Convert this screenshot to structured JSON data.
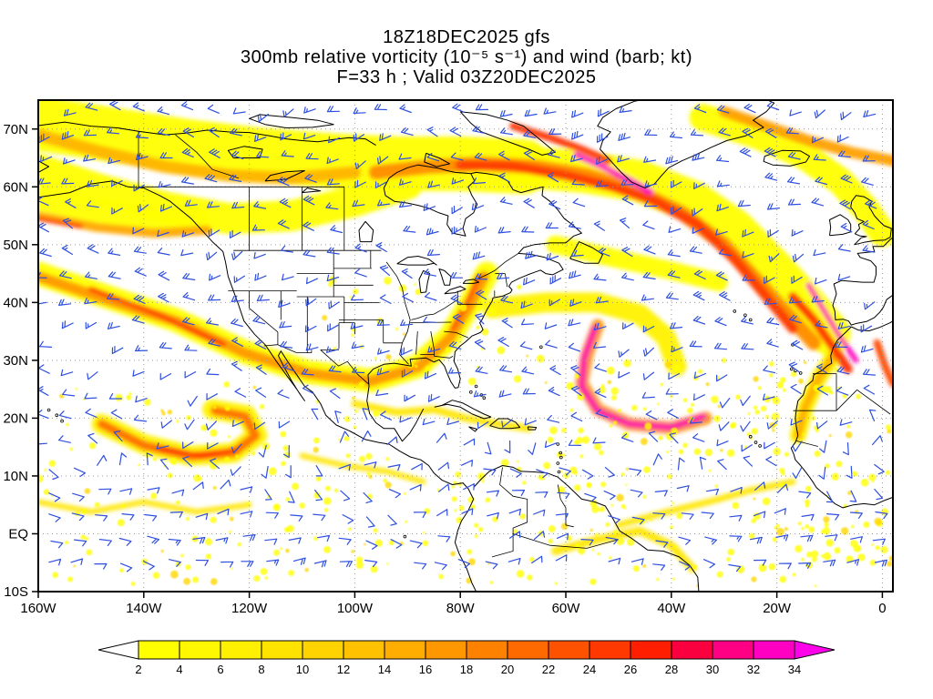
{
  "title": {
    "line1": "18Z18DEC2025 gfs",
    "line2": "300mb relative vorticity (10⁻⁵ s⁻¹) and wind (barb; kt)",
    "line3": "F=33 h ; Valid 03Z20DEC2025"
  },
  "axes": {
    "lat_ticks": [
      {
        "label": "70N",
        "value": 70
      },
      {
        "label": "60N",
        "value": 60
      },
      {
        "label": "50N",
        "value": 50
      },
      {
        "label": "40N",
        "value": 40
      },
      {
        "label": "30N",
        "value": 30
      },
      {
        "label": "20N",
        "value": 20
      },
      {
        "label": "10N",
        "value": 10
      },
      {
        "label": "EQ",
        "value": 0
      },
      {
        "label": "10S",
        "value": -10
      }
    ],
    "lon_ticks": [
      {
        "label": "160W",
        "value": -160
      },
      {
        "label": "140W",
        "value": -140
      },
      {
        "label": "120W",
        "value": -120
      },
      {
        "label": "100W",
        "value": -100
      },
      {
        "label": "80W",
        "value": -80
      },
      {
        "label": "60W",
        "value": -60
      },
      {
        "label": "40W",
        "value": -40
      },
      {
        "label": "20W",
        "value": -20
      },
      {
        "label": "0",
        "value": 0
      }
    ]
  },
  "colorbar": {
    "labels": [
      "2",
      "4",
      "6",
      "8",
      "10",
      "12",
      "14",
      "16",
      "18",
      "20",
      "22",
      "24",
      "26",
      "28",
      "30",
      "32",
      "34"
    ],
    "segment_colors": [
      "#ffff00",
      "#fff800",
      "#ffef00",
      "#ffe300",
      "#ffd300",
      "#ffc100",
      "#ffad00",
      "#ff9700",
      "#ff8100",
      "#ff6a00",
      "#ff5200",
      "#ff3900",
      "#ff1f00",
      "#fb003f",
      "#ff0084",
      "#ff00c2"
    ],
    "arrow_left_color": "#ffffff",
    "arrow_right_color": "#ff00ea",
    "outline_color": "#000000"
  },
  "chart_data": {
    "type": "heatmap",
    "title": "300mb relative vorticity (10⁻⁵ s⁻¹) and wind (barb; kt)",
    "model": "gfs",
    "init_time": "18Z18DEC2025",
    "forecast": "F=33 h",
    "valid_time": "03Z20DEC2025",
    "lon_range": [
      -160,
      2
    ],
    "lat_range": [
      -10,
      75
    ],
    "colorbar_levels": [
      2,
      4,
      6,
      8,
      10,
      12,
      14,
      16,
      18,
      20,
      22,
      24,
      26,
      28,
      30,
      32,
      34
    ],
    "units": "10⁻⁵ s⁻¹",
    "wind_barbs": {
      "color": "#2e4fe0",
      "units": "kt",
      "lon_step": 4.6,
      "lat_step": 4.1
    },
    "vorticity_bands": [
      {
        "name": "arctic-yellow-west",
        "color": "#ffff00",
        "width": 60,
        "points": [
          [
            -160,
            71
          ],
          [
            -146,
            69
          ],
          [
            -132,
            67
          ],
          [
            -118,
            65.5
          ],
          [
            -104,
            64.5
          ],
          [
            -92,
            64
          ],
          [
            -80,
            64
          ],
          [
            -68,
            63.5
          ]
        ]
      },
      {
        "name": "arctic-yellow-east",
        "color": "#ffff00",
        "width": 46,
        "points": [
          [
            -68,
            63.5
          ],
          [
            -56,
            62.5
          ],
          [
            -46,
            61
          ],
          [
            -36,
            57.5
          ],
          [
            -28,
            52.5
          ],
          [
            -21,
            46
          ],
          [
            -15,
            40
          ],
          [
            -10,
            34.5
          ]
        ]
      },
      {
        "name": "canada-yellow",
        "color": "#ffff00",
        "width": 34,
        "points": [
          [
            -160,
            63
          ],
          [
            -148,
            59.5
          ],
          [
            -136,
            56.5
          ],
          [
            -124,
            54.5
          ],
          [
            -112,
            55
          ],
          [
            -100,
            57.5
          ],
          [
            -90,
            60.5
          ]
        ]
      },
      {
        "name": "gulf-alaska-yellow",
        "color": "#ffff00",
        "width": 26,
        "points": [
          [
            -160,
            58
          ],
          [
            -150,
            56
          ],
          [
            -140,
            54.8
          ],
          [
            -130,
            54.5
          ]
        ]
      },
      {
        "name": "natl-yellow-south",
        "color": "#ffff00",
        "width": 20,
        "points": [
          [
            -62,
            50
          ],
          [
            -50,
            47.5
          ],
          [
            -40,
            45.5
          ],
          [
            -31,
            43.5
          ]
        ]
      },
      {
        "name": "nw-europe-yellow",
        "color": "#ffff00",
        "width": 30,
        "points": [
          [
            -34,
            72
          ],
          [
            -24,
            69
          ],
          [
            -15,
            65.5
          ],
          [
            -8,
            61
          ],
          [
            -3,
            56
          ],
          [
            0,
            52
          ]
        ]
      },
      {
        "name": "swus-yellow-halo",
        "color": "#ffff00",
        "width": 26,
        "points": [
          [
            -160,
            45
          ],
          [
            -147,
            41
          ],
          [
            -134,
            37
          ],
          [
            -121,
            31.5
          ],
          [
            -109,
            28
          ],
          [
            -97,
            26.5
          ],
          [
            -88,
            29
          ],
          [
            -82,
            34
          ],
          [
            -78,
            40
          ],
          [
            -75,
            45
          ]
        ]
      },
      {
        "name": "epac-hook-yellow",
        "color": "#fff200",
        "width": 22,
        "points": [
          [
            -148,
            19
          ],
          [
            -140,
            15.5
          ],
          [
            -131,
            13.5
          ],
          [
            -123,
            14
          ],
          [
            -118.5,
            17
          ],
          [
            -120.5,
            20.5
          ],
          [
            -127,
            21.5
          ]
        ]
      },
      {
        "name": "atl-arc-yellow",
        "color": "#fff200",
        "width": 22,
        "points": [
          [
            -74,
            39
          ],
          [
            -64,
            40
          ],
          [
            -54,
            40
          ],
          [
            -46,
            38
          ],
          [
            -41,
            34
          ],
          [
            -39,
            29
          ]
        ]
      },
      {
        "name": "nwafrica-yellow",
        "color": "#fff200",
        "width": 18,
        "points": [
          [
            -9,
            31
          ],
          [
            -12,
            27
          ],
          [
            -14.5,
            22
          ],
          [
            -16,
            17
          ]
        ]
      },
      {
        "name": "carib-yellow",
        "color": "#ffe600",
        "width": 8,
        "points": [
          [
            -100,
            22.5
          ],
          [
            -92,
            21
          ],
          [
            -85,
            21.5
          ],
          [
            -79,
            20
          ],
          [
            -73,
            19
          ],
          [
            -67,
            18.2
          ]
        ]
      },
      {
        "name": "itcz-atl-yellow",
        "color": "#ffe600",
        "width": 7,
        "points": [
          [
            -50,
            1.5
          ],
          [
            -42,
            3.5
          ],
          [
            -33,
            5.5
          ],
          [
            -25,
            7.5
          ],
          [
            -17,
            9
          ]
        ]
      },
      {
        "name": "samerica-yellow",
        "color": "#ffe600",
        "width": 9,
        "points": [
          [
            -62,
            -3
          ],
          [
            -54,
            -1
          ],
          [
            -46,
            0.5
          ],
          [
            -40,
            -2
          ],
          [
            -36,
            -6
          ]
        ]
      },
      {
        "name": "epac-itcz-yellow",
        "color": "#ffe600",
        "width": 6,
        "points": [
          [
            -160,
            5.5
          ],
          [
            -150,
            3.8
          ],
          [
            -140,
            5.5
          ],
          [
            -130,
            3.8
          ],
          [
            -120,
            5
          ]
        ]
      },
      {
        "name": "mex-pac-yellow",
        "color": "#ffe600",
        "width": 6,
        "points": [
          [
            -110,
            13.5
          ],
          [
            -102,
            11.8
          ],
          [
            -94,
            10.8
          ],
          [
            -87,
            9
          ]
        ]
      },
      {
        "name": "arctic-orange-west",
        "color": "#ffb400",
        "width": 14,
        "points": [
          [
            -160,
            69
          ],
          [
            -148,
            66
          ],
          [
            -136,
            63.5
          ],
          [
            -124,
            62
          ],
          [
            -112,
            61.5
          ],
          [
            -100,
            62.5
          ]
        ]
      },
      {
        "name": "bc-orange",
        "color": "#ffa800",
        "width": 10,
        "points": [
          [
            -160,
            55
          ],
          [
            -149,
            53
          ],
          [
            -138,
            52
          ],
          [
            -128,
            52.5
          ]
        ]
      },
      {
        "name": "hudson-orange",
        "color": "#ff8c00",
        "width": 16,
        "points": [
          [
            -96,
            62.5
          ],
          [
            -86,
            63.5
          ],
          [
            -76,
            64
          ],
          [
            -66,
            63.5
          ],
          [
            -56,
            62
          ],
          [
            -47,
            59.5
          ],
          [
            -38,
            55.5
          ],
          [
            -30,
            50
          ],
          [
            -24,
            44
          ],
          [
            -18,
            38
          ],
          [
            -13,
            33
          ]
        ]
      },
      {
        "name": "nw-europe-orange",
        "color": "#ffa000",
        "width": 12,
        "points": [
          [
            -30,
            73
          ],
          [
            -22,
            70.5
          ],
          [
            -14,
            68
          ],
          [
            -6,
            66
          ],
          [
            2,
            64.5
          ]
        ]
      },
      {
        "name": "atl-hook-orange-halo",
        "color": "#ff9000",
        "width": 14,
        "points": [
          [
            -54,
            36
          ],
          [
            -56,
            31
          ],
          [
            -57,
            26
          ],
          [
            -54,
            21.5
          ],
          [
            -48,
            19
          ],
          [
            -40,
            18.3
          ],
          [
            -33.5,
            20
          ]
        ]
      },
      {
        "name": "swus-orange",
        "color": "#ff9800",
        "width": 12,
        "points": [
          [
            -160,
            44.5
          ],
          [
            -147,
            40.5
          ],
          [
            -134,
            36.8
          ],
          [
            -121,
            31.3
          ],
          [
            -109,
            27.8
          ],
          [
            -97,
            26.4
          ],
          [
            -88,
            28.8
          ],
          [
            -82,
            33.8
          ],
          [
            -78,
            39.8
          ],
          [
            -75.5,
            44.5
          ]
        ]
      },
      {
        "name": "epac-hook-orange",
        "color": "#ff7000",
        "width": 10,
        "points": [
          [
            -148,
            19
          ],
          [
            -140,
            15.3
          ],
          [
            -131,
            13.4
          ],
          [
            -123,
            14
          ],
          [
            -118.8,
            17
          ],
          [
            -120.8,
            20.3
          ],
          [
            -126.5,
            21.3
          ]
        ]
      },
      {
        "name": "nwafrica-orange",
        "color": "#ffb000",
        "width": 9,
        "points": [
          [
            -9.5,
            30.5
          ],
          [
            -12.3,
            26.5
          ],
          [
            -14.7,
            21.8
          ],
          [
            -16,
            17
          ]
        ]
      },
      {
        "name": "bc-red",
        "color": "#ff4000",
        "width": 5,
        "points": [
          [
            -160,
            54.5
          ],
          [
            -152,
            53.2
          ]
        ]
      },
      {
        "name": "natl-red",
        "color": "#ff3c00",
        "width": 11,
        "points": [
          [
            -80,
            63.8
          ],
          [
            -70,
            63.6
          ],
          [
            -60,
            62
          ],
          [
            -51,
            60
          ],
          [
            -43,
            57.5
          ],
          [
            -35,
            53.5
          ],
          [
            -28,
            47.5
          ],
          [
            -22,
            41
          ],
          [
            -17,
            35.5
          ]
        ]
      },
      {
        "name": "davis-red",
        "color": "#ff3200",
        "width": 8,
        "points": [
          [
            -70,
            70.5
          ],
          [
            -63,
            68.5
          ],
          [
            -57,
            66.5
          ],
          [
            -52,
            64.5
          ]
        ]
      },
      {
        "name": "swus-red",
        "color": "#ff4000",
        "width": 6,
        "points": [
          [
            -150,
            42.3
          ],
          [
            -137,
            37.8
          ],
          [
            -125,
            32.8
          ]
        ]
      },
      {
        "name": "eastcoast-red",
        "color": "#ff5000",
        "width": 6,
        "points": [
          [
            -81.5,
            35.5
          ],
          [
            -78.5,
            40.5
          ],
          [
            -76.5,
            44.5
          ]
        ]
      },
      {
        "name": "epac-hook-red",
        "color": "#ff2800",
        "width": 5,
        "points": [
          [
            -137,
            14.8
          ],
          [
            -129,
            13.5
          ],
          [
            -122.8,
            14.6
          ]
        ]
      },
      {
        "name": "iberia-red",
        "color": "#ff3000",
        "width": 10,
        "points": [
          [
            -17,
            41
          ],
          [
            -13,
            37
          ],
          [
            -9.5,
            32.5
          ],
          [
            -6.5,
            28.5
          ]
        ]
      },
      {
        "name": "algeria-red",
        "color": "#ff4800",
        "width": 8,
        "points": [
          [
            -1,
            33
          ],
          [
            0.5,
            29
          ],
          [
            2,
            26
          ]
        ]
      },
      {
        "name": "greenland-magenta",
        "color": "#ff00cc",
        "width": 7,
        "points": [
          [
            -58,
            65.5
          ],
          [
            -53,
            63.5
          ],
          [
            -48,
            61.2
          ],
          [
            -44,
            59.2
          ]
        ]
      },
      {
        "name": "iberia-magenta",
        "color": "#ff00bb",
        "width": 6,
        "points": [
          [
            -14,
            43
          ],
          [
            -11,
            38.5
          ],
          [
            -8,
            34
          ],
          [
            -5,
            30
          ]
        ]
      },
      {
        "name": "atl-hook-magenta",
        "color": "#ff00b0",
        "width": 7,
        "points": [
          [
            -54.5,
            35.5
          ],
          [
            -56.5,
            30.5
          ],
          [
            -57,
            25.5
          ],
          [
            -54,
            21.3
          ],
          [
            -48,
            19
          ],
          [
            -40,
            18.4
          ],
          [
            -34,
            20.2
          ]
        ]
      }
    ]
  }
}
